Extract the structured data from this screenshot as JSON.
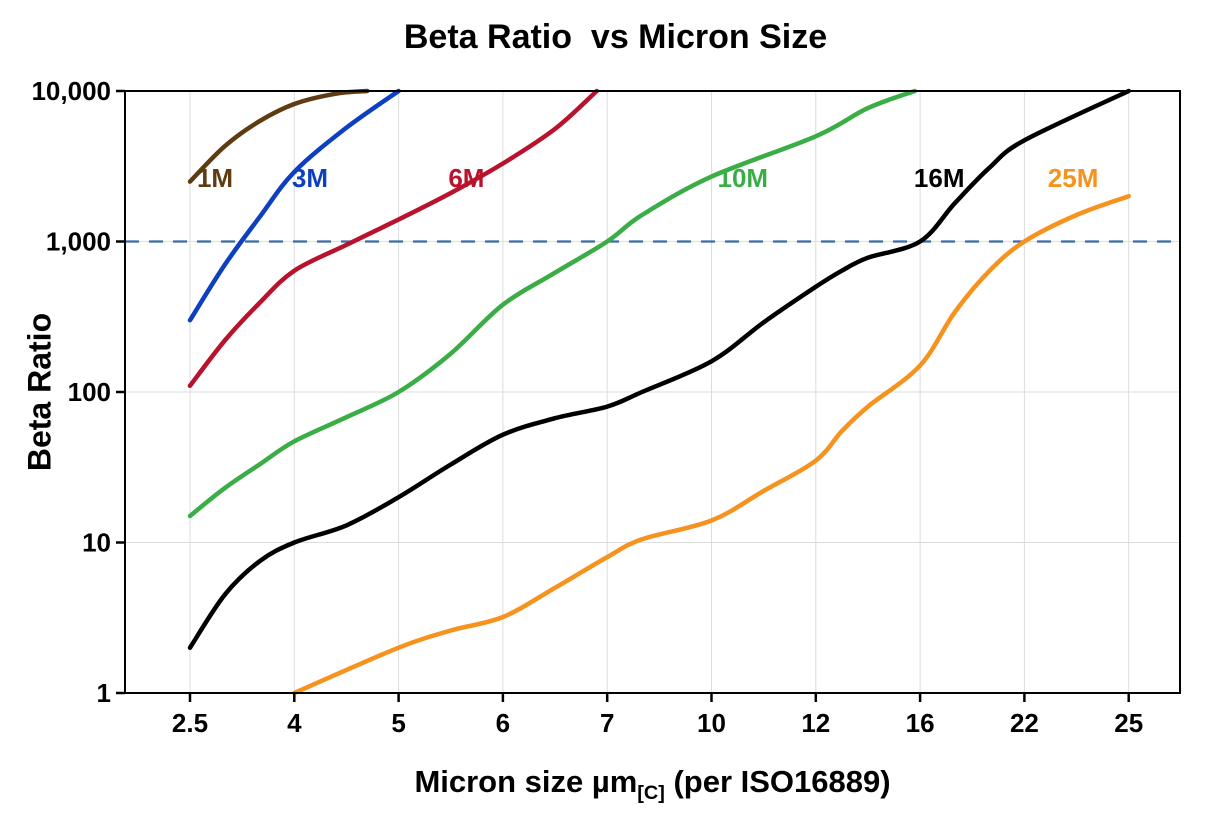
{
  "chart_data": {
    "type": "line",
    "title": "Beta Ratio  vs Micron Size",
    "xlabel": "Micron size µm[C] (per ISO16889)",
    "xlabel_parts": {
      "main": "Micron size µm",
      "subscript": "[C]",
      "suffix": " (per ISO16889)"
    },
    "ylabel": "Beta Ratio",
    "y_scale": "log",
    "ylim": [
      1,
      10000
    ],
    "x_ticks": [
      2.5,
      4,
      5,
      6,
      7,
      10,
      12,
      16,
      22,
      25
    ],
    "x_tick_labels": [
      "2.5",
      "4",
      "5",
      "6",
      "7",
      "10",
      "12",
      "16",
      "22",
      "25"
    ],
    "y_ticks": [
      1,
      10,
      100,
      1000,
      10000
    ],
    "y_tick_labels": [
      "1",
      "10",
      "100",
      "1,000",
      "10,000"
    ],
    "grid": true,
    "grid_color": "#dcdcdc",
    "reference_line": {
      "y": 1000,
      "style": "dashed",
      "color": "#3a6ba5"
    },
    "series": [
      {
        "name": "1M",
        "color": "#5f3b12",
        "label_at": {
          "x": 2.86,
          "y": 2300
        },
        "points": [
          [
            2.5,
            2500
          ],
          [
            3,
            4300
          ],
          [
            3.5,
            6300
          ],
          [
            4,
            8200
          ],
          [
            4.4,
            9600
          ],
          [
            4.7,
            10000
          ]
        ]
      },
      {
        "name": "3M",
        "color": "#0d3fc1",
        "label_at": {
          "x": 4.15,
          "y": 2300
        },
        "points": [
          [
            2.5,
            300
          ],
          [
            3,
            700
          ],
          [
            3.5,
            1450
          ],
          [
            4,
            2900
          ],
          [
            4.5,
            5700
          ],
          [
            5,
            10000
          ]
        ]
      },
      {
        "name": "6M",
        "color": "#b8122d",
        "label_at": {
          "x": 5.65,
          "y": 2300
        },
        "points": [
          [
            2.5,
            110
          ],
          [
            3,
            220
          ],
          [
            3.5,
            390
          ],
          [
            4,
            640
          ],
          [
            4.5,
            950
          ],
          [
            5,
            1400
          ],
          [
            5.5,
            2100
          ],
          [
            6,
            3300
          ],
          [
            6.5,
            5600
          ],
          [
            6.9,
            10000
          ]
        ]
      },
      {
        "name": "10M",
        "color": "#3aad46",
        "label_at": {
          "x": 10.6,
          "y": 2300
        },
        "points": [
          [
            2.5,
            15
          ],
          [
            3,
            23
          ],
          [
            3.5,
            33
          ],
          [
            4,
            47
          ],
          [
            4.5,
            68
          ],
          [
            5,
            100
          ],
          [
            5.5,
            180
          ],
          [
            6,
            380
          ],
          [
            6.5,
            620
          ],
          [
            7,
            1000
          ],
          [
            8,
            1500
          ],
          [
            10,
            2700
          ],
          [
            12,
            5000
          ],
          [
            14,
            7700
          ],
          [
            15.8,
            10000
          ]
        ]
      },
      {
        "name": "16M",
        "color": "#000000",
        "label_at": {
          "x": 17.1,
          "y": 2300
        },
        "points": [
          [
            2.5,
            2
          ],
          [
            3,
            4.5
          ],
          [
            3.5,
            7.5
          ],
          [
            4,
            10
          ],
          [
            4.5,
            13
          ],
          [
            5,
            20
          ],
          [
            5.5,
            33
          ],
          [
            6,
            52
          ],
          [
            6.5,
            67
          ],
          [
            7,
            80
          ],
          [
            8,
            100
          ],
          [
            10,
            160
          ],
          [
            11,
            290
          ],
          [
            12,
            500
          ],
          [
            13,
            640
          ],
          [
            14,
            780
          ],
          [
            16,
            1000
          ],
          [
            18,
            1800
          ],
          [
            20,
            3100
          ],
          [
            22,
            4700
          ],
          [
            25,
            10000
          ]
        ]
      },
      {
        "name": "25M",
        "color": "#f6921e",
        "label_at": {
          "x": 23.4,
          "y": 2300
        },
        "points": [
          [
            4,
            1
          ],
          [
            5,
            2
          ],
          [
            5.5,
            2.6
          ],
          [
            6,
            3.2
          ],
          [
            6.5,
            5
          ],
          [
            7,
            8
          ],
          [
            8,
            10.5
          ],
          [
            10,
            14
          ],
          [
            11,
            22
          ],
          [
            12,
            35
          ],
          [
            13,
            55
          ],
          [
            14,
            80
          ],
          [
            16,
            150
          ],
          [
            18,
            340
          ],
          [
            20,
            640
          ],
          [
            22,
            1000
          ],
          [
            23.5,
            1500
          ],
          [
            25,
            2000
          ]
        ]
      }
    ]
  }
}
